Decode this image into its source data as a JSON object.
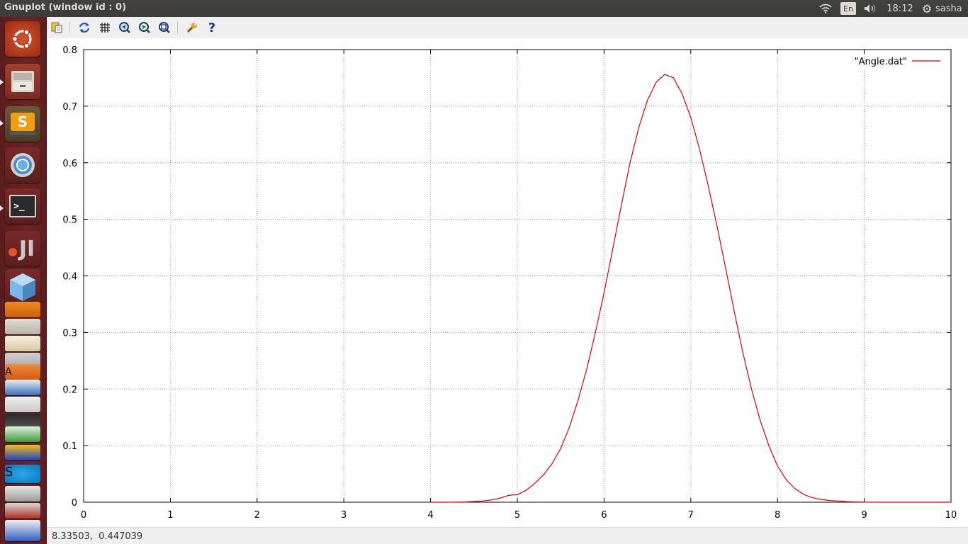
{
  "window": {
    "title": "Gnuplot (window id : 0)"
  },
  "top_panel": {
    "keyboard_layout": "En",
    "clock": "18:12",
    "user": "sasha",
    "icons": [
      "wifi-icon",
      "volume-icon",
      "session-gear-icon"
    ]
  },
  "launcher": {
    "items": [
      "ubuntu-dash",
      "file-manager",
      "sublime-text",
      "chromium",
      "terminal",
      "jetbrains",
      "virtualbox",
      "vlc",
      "disk-utility",
      "image-viewer",
      "software-center",
      "libreoffice-writer",
      "text-editor",
      "libreoffice-calc",
      "audio-editor",
      "skype",
      "system-tool",
      "libreoffice-impress"
    ],
    "sublime_letter": "S",
    "jetbrains_letters": "JI",
    "skype_letter": "S",
    "software_center_letter": "A",
    "terminal_prompt": ">_"
  },
  "toolbar": {
    "buttons": [
      "copy-to-clipboard-icon",
      "replot-icon",
      "grid-icon",
      "previous-zoom-icon",
      "next-zoom-icon",
      "autoscale-icon",
      "config-wrench-icon",
      "help-icon"
    ],
    "help_glyph": "?"
  },
  "status": {
    "coordinates": "8.33503,  0.447039"
  },
  "colors": {
    "series": "#e00000",
    "panel": "#3c3b37",
    "launcher": "#6e2424"
  },
  "chart_data": {
    "type": "line",
    "title": "",
    "xlabel": "",
    "ylabel": "",
    "xlim": [
      0,
      10
    ],
    "ylim": [
      0,
      0.8
    ],
    "xticks": [
      0,
      1,
      2,
      3,
      4,
      5,
      6,
      7,
      8,
      9,
      10
    ],
    "yticks": [
      0,
      0.1,
      0.2,
      0.3,
      0.4,
      0.5,
      0.6,
      0.7,
      0.8
    ],
    "grid": true,
    "legend_position": "top-right",
    "series": [
      {
        "name": "\"Angle.dat\"",
        "color": "#e00000",
        "x": [
          4.0,
          4.2,
          4.4,
          4.6,
          4.7,
          4.8,
          4.9,
          4.95,
          5.0,
          5.1,
          5.2,
          5.3,
          5.4,
          5.5,
          5.6,
          5.7,
          5.8,
          5.9,
          6.0,
          6.1,
          6.2,
          6.3,
          6.4,
          6.5,
          6.6,
          6.7,
          6.8,
          6.9,
          7.0,
          7.1,
          7.2,
          7.3,
          7.4,
          7.5,
          7.6,
          7.7,
          7.8,
          7.9,
          8.0,
          8.1,
          8.2,
          8.3,
          8.4,
          8.5,
          8.6,
          8.7,
          8.8,
          8.9,
          9.0,
          9.2,
          9.5,
          10.0
        ],
        "y": [
          0.0,
          0.0,
          0.0005,
          0.002,
          0.004,
          0.007,
          0.012,
          0.013,
          0.013,
          0.021,
          0.033,
          0.048,
          0.068,
          0.095,
          0.132,
          0.18,
          0.235,
          0.3,
          0.37,
          0.447,
          0.525,
          0.6,
          0.662,
          0.71,
          0.742,
          0.756,
          0.75,
          0.722,
          0.68,
          0.625,
          0.56,
          0.49,
          0.415,
          0.338,
          0.265,
          0.2,
          0.145,
          0.1,
          0.064,
          0.04,
          0.024,
          0.014,
          0.008,
          0.005,
          0.003,
          0.002,
          0.001,
          0.0005,
          0.0002,
          0.0,
          0.0,
          0.0
        ]
      }
    ]
  }
}
